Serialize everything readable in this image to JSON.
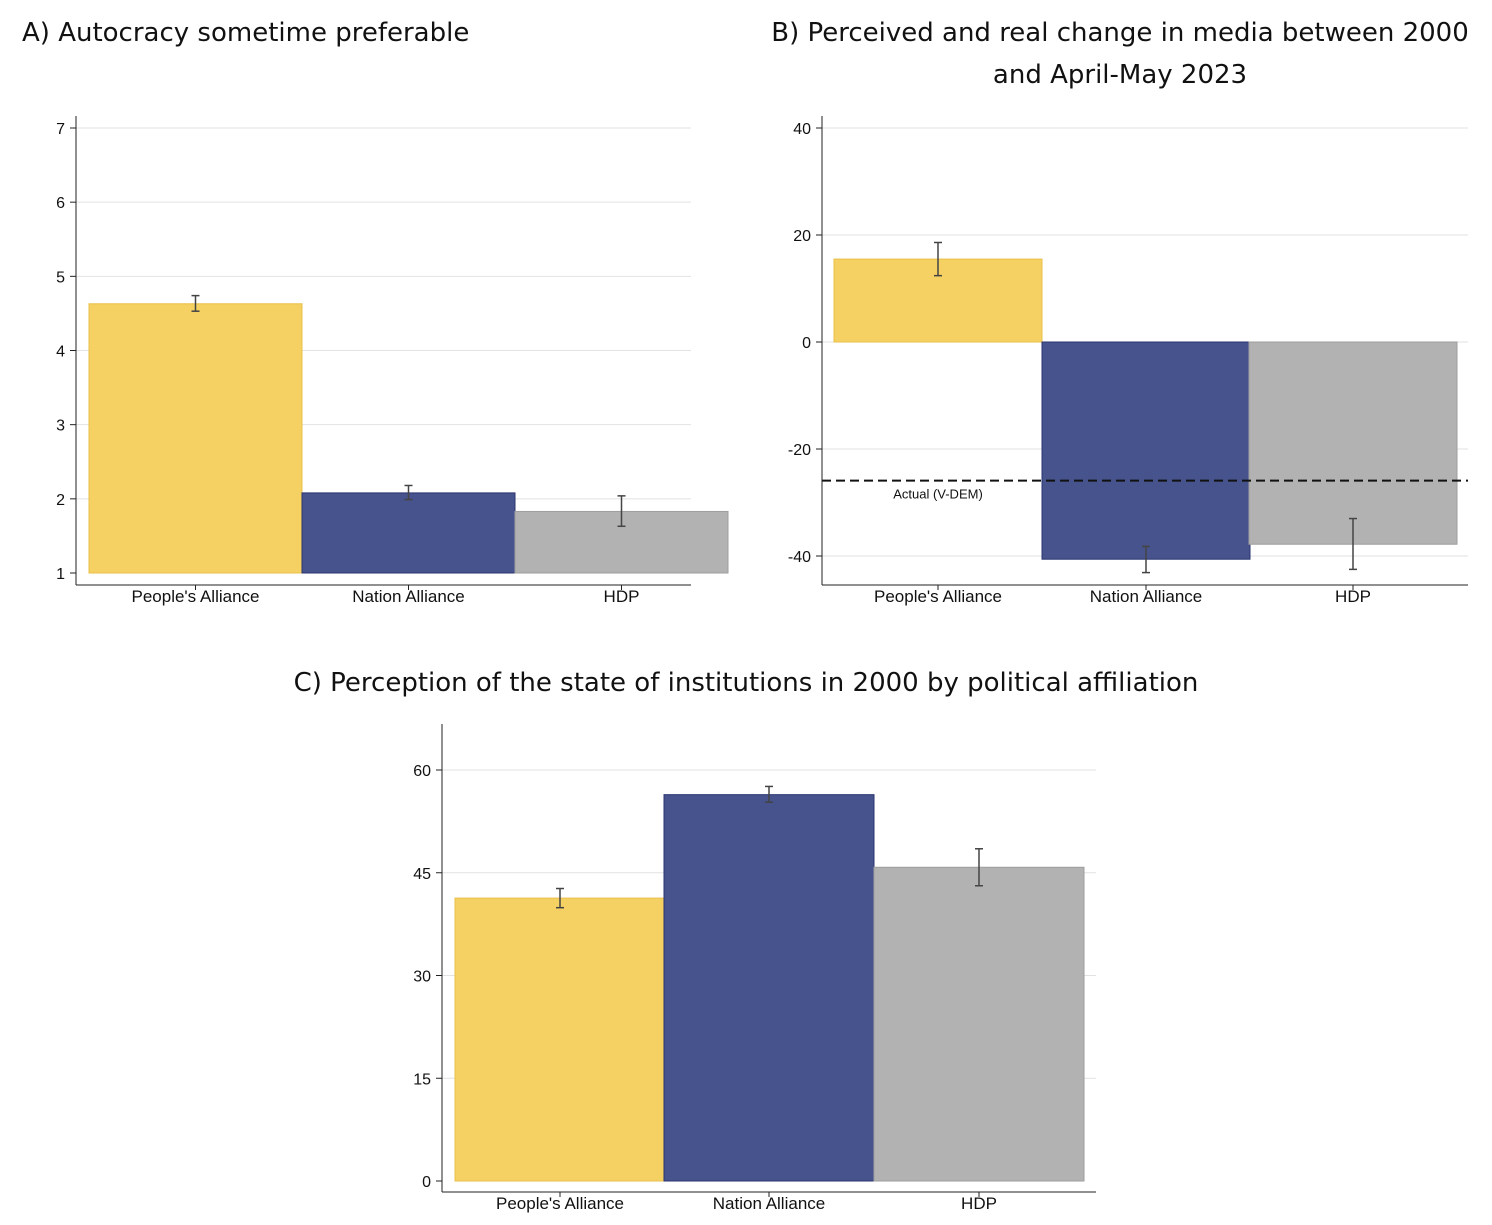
{
  "colors": {
    "people": "#F5D163",
    "nation": "#47538C",
    "hdp": "#B2B2B2"
  },
  "chart_data": [
    {
      "id": "a",
      "type": "bar",
      "title": "A) Autocracy sometime preferable",
      "categories": [
        "People's Alliance",
        "Nation Alliance",
        "HDP"
      ],
      "values": [
        4.63,
        2.08,
        1.83
      ],
      "error_low": [
        4.53,
        1.99,
        1.63
      ],
      "error_high": [
        4.74,
        2.18,
        2.04
      ],
      "ylim": [
        1,
        7
      ],
      "yticks": [
        1,
        2,
        3,
        4,
        5,
        6,
        7
      ],
      "xlabel": "",
      "ylabel": "",
      "grid": true
    },
    {
      "id": "b",
      "type": "bar",
      "title": "B) Perceived and real change in media between 2000 and April-May 2023",
      "categories": [
        "People's Alliance",
        "Nation Alliance",
        "HDP"
      ],
      "values": [
        15.5,
        -40.6,
        -37.8
      ],
      "error_low": [
        12.4,
        -43.1,
        -42.5
      ],
      "error_high": [
        18.6,
        -38.2,
        -33.0
      ],
      "ylim": [
        -45,
        41
      ],
      "yticks": [
        -40,
        -20,
        0,
        20,
        40
      ],
      "reference_line": {
        "value": -25.9,
        "label": "Actual (V-DEM)",
        "style": "dashed"
      },
      "xlabel": "",
      "ylabel": "",
      "grid": true
    },
    {
      "id": "c",
      "type": "bar",
      "title": "C) Perception of the state of institutions in 2000 by political affiliation",
      "categories": [
        "People's Alliance",
        "Nation Alliance",
        "HDP"
      ],
      "values": [
        41.3,
        56.4,
        45.8
      ],
      "error_low": [
        39.9,
        55.3,
        43.1
      ],
      "error_high": [
        42.7,
        57.6,
        48.5
      ],
      "ylim": [
        0,
        67
      ],
      "yticks": [
        0,
        15,
        30,
        45,
        60
      ],
      "xlabel": "",
      "ylabel": "",
      "grid": true
    }
  ]
}
